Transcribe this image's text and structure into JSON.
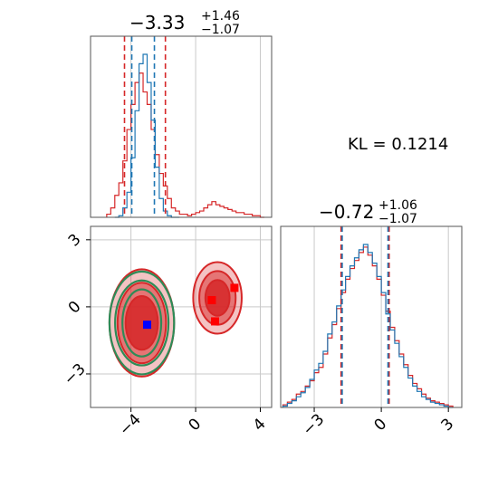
{
  "chart_data": [
    {
      "type": "histogram",
      "panel": "marginal-param-1",
      "title": "−3.33",
      "title_sup": "+1.46",
      "title_sub": "−1.07",
      "xlim": [
        -6.5,
        4.7
      ],
      "grid": true,
      "series": [
        {
          "color": "#d62728",
          "bin_edges": [
            -5.5,
            -5.25,
            -5.0,
            -4.75,
            -4.5,
            -4.25,
            -4.0,
            -3.75,
            -3.5,
            -3.25,
            -3.0,
            -2.75,
            -2.5,
            -2.25,
            -2.0,
            -1.75,
            -1.5,
            -1.25,
            -1.0,
            -0.75,
            -0.5,
            -0.25,
            0.0,
            0.25,
            0.5,
            0.75,
            1.0,
            1.25,
            1.5,
            1.75,
            2.0,
            2.25,
            2.5,
            2.75,
            3.0,
            3.25,
            3.5,
            3.75,
            4.0,
            4.25
          ],
          "counts": [
            2,
            6,
            14,
            22,
            36,
            56,
            72,
            86,
            92,
            80,
            72,
            56,
            40,
            28,
            20,
            12,
            6,
            4,
            2,
            2,
            1,
            2,
            3,
            4,
            6,
            8,
            10,
            8,
            7,
            6,
            5,
            4,
            3,
            3,
            2,
            2,
            1,
            1,
            0
          ]
        },
        {
          "color": "#1f77b4",
          "bin_edges": [
            -5.0,
            -4.75,
            -4.5,
            -4.25,
            -4.0,
            -3.75,
            -3.5,
            -3.25,
            -3.0,
            -2.75,
            -2.5,
            -2.25,
            -2.0,
            -1.75,
            -1.5,
            -1.25,
            -1.0
          ],
          "counts": [
            0,
            1,
            6,
            16,
            38,
            68,
            98,
            104,
            86,
            62,
            32,
            12,
            4,
            1,
            0,
            0
          ]
        }
      ],
      "quantile_lines": [
        {
          "color": "#d62728",
          "values": [
            -4.4,
            -1.87
          ]
        },
        {
          "color": "#1f77b4",
          "values": [
            -3.95,
            -2.55
          ]
        }
      ]
    },
    {
      "type": "contour",
      "panel": "joint-param-1-param-2",
      "xlim": [
        -6.5,
        4.7
      ],
      "ylim": [
        -4.5,
        3.6
      ],
      "x_ticks": [
        -4,
        0,
        4
      ],
      "x_tick_labels": [
        "−4",
        "0",
        "4"
      ],
      "y_ticks": [
        -3,
        0,
        3
      ],
      "y_tick_labels": [
        "−3",
        "0",
        "3"
      ],
      "grid": true,
      "red_modes": [
        {
          "x": -3.33,
          "y": -0.72,
          "rx": 2.0,
          "ry": 2.4
        },
        {
          "x": 1.35,
          "y": 0.4,
          "rx": 1.5,
          "ry": 1.6
        }
      ],
      "blue_ellipses": {
        "x": -3.33,
        "y": -0.72,
        "rx": [
          2.0,
          1.65,
          1.2
        ],
        "ry": [
          2.3,
          1.9,
          1.5
        ],
        "edge_color": "#2e8b57"
      },
      "markers": [
        {
          "color": "#ff0000",
          "x": 1.0,
          "y": 0.3
        },
        {
          "color": "#ff0000",
          "x": 2.4,
          "y": 0.85
        },
        {
          "color": "#ff0000",
          "x": 1.2,
          "y": -0.65
        },
        {
          "color": "#0000ff",
          "x": -3.0,
          "y": -0.8
        }
      ]
    },
    {
      "type": "histogram",
      "panel": "marginal-param-2",
      "title": "−0.72",
      "title_sup": "+1.06",
      "title_sub": "−1.07",
      "xlim": [
        -4.5,
        3.6
      ],
      "x_ticks": [
        -3,
        0,
        3
      ],
      "x_tick_labels": [
        "−3",
        "0",
        "3"
      ],
      "grid": true,
      "series": [
        {
          "color": "#d62728",
          "bin_edges": [
            -4.4,
            -4.2,
            -4.0,
            -3.8,
            -3.6,
            -3.4,
            -3.2,
            -3.0,
            -2.8,
            -2.6,
            -2.4,
            -2.2,
            -2.0,
            -1.8,
            -1.6,
            -1.4,
            -1.2,
            -1.0,
            -0.8,
            -0.6,
            -0.4,
            -0.2,
            0.0,
            0.2,
            0.4,
            0.6,
            0.8,
            1.0,
            1.2,
            1.4,
            1.6,
            1.8,
            2.0,
            2.2,
            2.4,
            2.6,
            2.8,
            3.0,
            3.2
          ],
          "counts": [
            2,
            4,
            6,
            10,
            12,
            16,
            20,
            26,
            30,
            40,
            52,
            62,
            74,
            86,
            96,
            104,
            110,
            116,
            120,
            114,
            106,
            96,
            84,
            72,
            60,
            50,
            40,
            32,
            24,
            18,
            14,
            10,
            7,
            5,
            4,
            3,
            2,
            1
          ]
        },
        {
          "color": "#1f77b4",
          "bin_edges": [
            -4.4,
            -4.2,
            -4.0,
            -3.8,
            -3.6,
            -3.4,
            -3.2,
            -3.0,
            -2.8,
            -2.6,
            -2.4,
            -2.2,
            -2.0,
            -1.8,
            -1.6,
            -1.4,
            -1.2,
            -1.0,
            -0.8,
            -0.6,
            -0.4,
            -0.2,
            0.0,
            0.2,
            0.4,
            0.6,
            0.8,
            1.0,
            1.2,
            1.4,
            1.6,
            1.8,
            2.0,
            2.2,
            2.4,
            2.6,
            2.8,
            3.0,
            3.2
          ],
          "counts": [
            1,
            3,
            5,
            8,
            11,
            15,
            21,
            28,
            33,
            42,
            55,
            64,
            76,
            88,
            98,
            106,
            112,
            118,
            122,
            116,
            108,
            98,
            86,
            70,
            58,
            48,
            38,
            30,
            22,
            16,
            12,
            8,
            6,
            4,
            3,
            2,
            1,
            0
          ]
        }
      ],
      "quantile_lines": [
        {
          "color": "#d62728",
          "values": [
            -1.8,
            0.35
          ]
        },
        {
          "color": "#1f77b4",
          "values": [
            -1.75,
            0.3
          ]
        }
      ]
    }
  ],
  "annotation": {
    "kl_text": "KL = 0.1214"
  }
}
